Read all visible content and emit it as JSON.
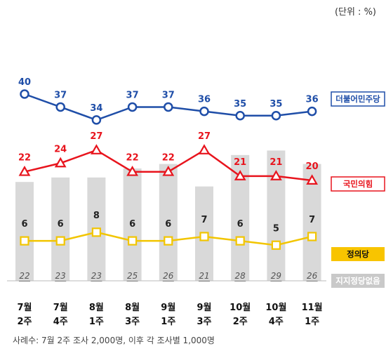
{
  "unit_note": "(단위 : %)",
  "footnote": "사례수: 7월 2주 조사 2,000명, 이후 각 조사별 1,000명",
  "legend": {
    "democratic": "더불어민주당",
    "ppp": "국민의힘",
    "justice": "정의당",
    "none": "지지정당없음"
  },
  "colors": {
    "democratic": "#1f4ea8",
    "ppp": "#e8141d",
    "justice": "#f2c500",
    "none_bar": "#d9d9d9",
    "legend_justice_bg": "#f8c400",
    "legend_none_bg": "#c9c9c9"
  },
  "chart_data": {
    "type": "line",
    "categories": [
      [
        "7월",
        "2주"
      ],
      [
        "7월",
        "4주"
      ],
      [
        "8월",
        "1주"
      ],
      [
        "8월",
        "3주"
      ],
      [
        "9월",
        "1주"
      ],
      [
        "9월",
        "3주"
      ],
      [
        "10월",
        "2주"
      ],
      [
        "10월",
        "4주"
      ],
      [
        "11월",
        "1주"
      ]
    ],
    "series": [
      {
        "name": "더불어민주당",
        "type": "line",
        "marker": "circle",
        "values": [
          40,
          37,
          34,
          37,
          37,
          36,
          35,
          35,
          36
        ]
      },
      {
        "name": "국민의힘",
        "type": "line",
        "marker": "triangle",
        "values": [
          22,
          24,
          27,
          22,
          22,
          27,
          21,
          21,
          20
        ]
      },
      {
        "name": "정의당",
        "type": "line",
        "marker": "square",
        "values": [
          6,
          6,
          8,
          6,
          6,
          7,
          6,
          5,
          7
        ]
      },
      {
        "name": "지지정당없음",
        "type": "bar",
        "values": [
          22,
          23,
          23,
          25,
          26,
          21,
          28,
          29,
          26
        ]
      }
    ],
    "legend_position": "right"
  }
}
